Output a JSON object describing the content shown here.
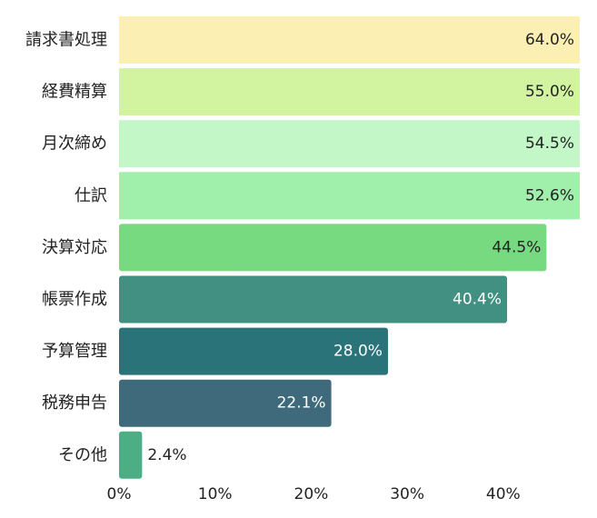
{
  "chart_data": {
    "type": "bar",
    "orientation": "horizontal",
    "categories": [
      "請求書処理",
      "経費精算",
      "月次締め",
      "仕訳",
      "決算対応",
      "帳票作成",
      "予算管理",
      "税務申告",
      "その他"
    ],
    "values": [
      64.0,
      55.0,
      54.5,
      52.6,
      44.5,
      40.4,
      28.0,
      22.1,
      2.4
    ],
    "value_labels": [
      "64.0%",
      "55.0%",
      "54.5%",
      "52.6%",
      "44.5%",
      "40.4%",
      "28.0%",
      "22.1%",
      "2.4%"
    ],
    "bar_colors": [
      "#fcefb4",
      "#d2f4a0",
      "#c4f7c8",
      "#a0efaa",
      "#77da80",
      "#429082",
      "#2a7379",
      "#3e6a7c",
      "#4bae84"
    ],
    "label_colors": [
      "#222222",
      "#222222",
      "#222222",
      "#222222",
      "#222222",
      "#ffffff",
      "#ffffff",
      "#ffffff",
      "#222222"
    ],
    "x_ticks": [
      0,
      10,
      20,
      30,
      40
    ],
    "x_tick_labels": [
      "0%",
      "10%",
      "20%",
      "30%",
      "40%"
    ],
    "xlim": [
      0,
      48
    ],
    "title": "",
    "xlabel": "",
    "ylabel": "",
    "grid": false,
    "legend": "none"
  }
}
